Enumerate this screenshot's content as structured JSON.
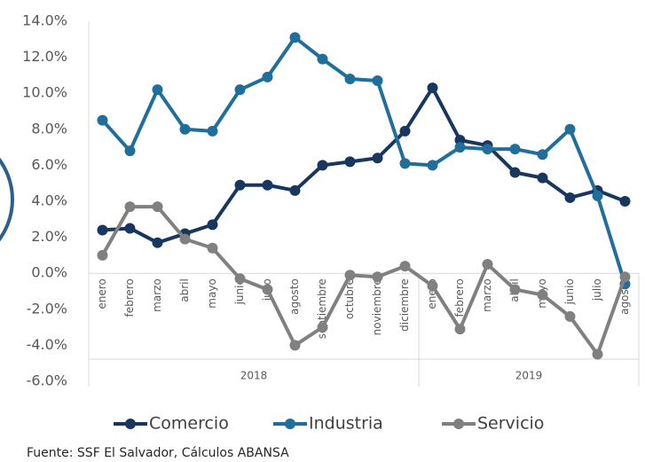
{
  "chart_data": {
    "type": "line",
    "categories": [
      {
        "label": "enero",
        "group": "2018"
      },
      {
        "label": "febrero",
        "group": "2018"
      },
      {
        "label": "marzo",
        "group": "2018"
      },
      {
        "label": "abril",
        "group": "2018"
      },
      {
        "label": "mayo",
        "group": "2018"
      },
      {
        "label": "junio",
        "group": "2018"
      },
      {
        "label": "julio",
        "group": "2018"
      },
      {
        "label": "agosto",
        "group": "2018"
      },
      {
        "label": "septiembre",
        "group": "2018"
      },
      {
        "label": "octubre",
        "group": "2018"
      },
      {
        "label": "noviembre",
        "group": "2018"
      },
      {
        "label": "diciembre",
        "group": "2018"
      },
      {
        "label": "enero",
        "group": "2019"
      },
      {
        "label": "febrero",
        "group": "2019"
      },
      {
        "label": "marzo",
        "group": "2019"
      },
      {
        "label": "abril",
        "group": "2019"
      },
      {
        "label": "mayo",
        "group": "2019"
      },
      {
        "label": "junio",
        "group": "2019"
      },
      {
        "label": "julio",
        "group": "2019"
      },
      {
        "label": "agosto",
        "group": "2019"
      }
    ],
    "series": [
      {
        "name": "Comercio",
        "color": "#17375e",
        "values": [
          2.4,
          2.5,
          1.7,
          2.2,
          2.7,
          4.9,
          4.9,
          4.6,
          6.0,
          6.2,
          6.4,
          7.9,
          10.3,
          7.4,
          7.1,
          5.6,
          5.3,
          4.2,
          4.6,
          4.0
        ]
      },
      {
        "name": "Industria",
        "color": "#1f6e9c",
        "values": [
          8.5,
          6.8,
          10.2,
          8.0,
          7.9,
          10.2,
          10.9,
          13.1,
          11.9,
          10.8,
          10.7,
          6.1,
          6.0,
          7.0,
          6.9,
          6.9,
          6.6,
          8.0,
          4.3,
          -0.6
        ]
      },
      {
        "name": "Servicio",
        "color": "#808080",
        "values": [
          1.0,
          3.7,
          3.7,
          1.9,
          1.4,
          -0.3,
          -0.9,
          -4.0,
          -3.0,
          -0.1,
          -0.2,
          0.4,
          -0.7,
          -3.1,
          0.5,
          -0.9,
          -1.2,
          -2.4,
          -4.5,
          -0.2
        ]
      }
    ],
    "ylim": [
      -6,
      14
    ],
    "yticks": [
      {
        "value": -6,
        "label": "-6.0%"
      },
      {
        "value": -4,
        "label": "-4.0%"
      },
      {
        "value": -2,
        "label": "-2.0%"
      },
      {
        "value": 0,
        "label": "0.0%"
      },
      {
        "value": 2,
        "label": "2.0%"
      },
      {
        "value": 4,
        "label": "4.0%"
      },
      {
        "value": 6,
        "label": "6.0%"
      },
      {
        "value": 8,
        "label": "8.0%"
      },
      {
        "value": 10,
        "label": "10.0%"
      },
      {
        "value": 12,
        "label": "12.0%"
      },
      {
        "value": 14,
        "label": "14.0%"
      }
    ],
    "legend": "bottom",
    "source": "Fuente: SSF El Salvador, Cálculos ABANSA"
  }
}
